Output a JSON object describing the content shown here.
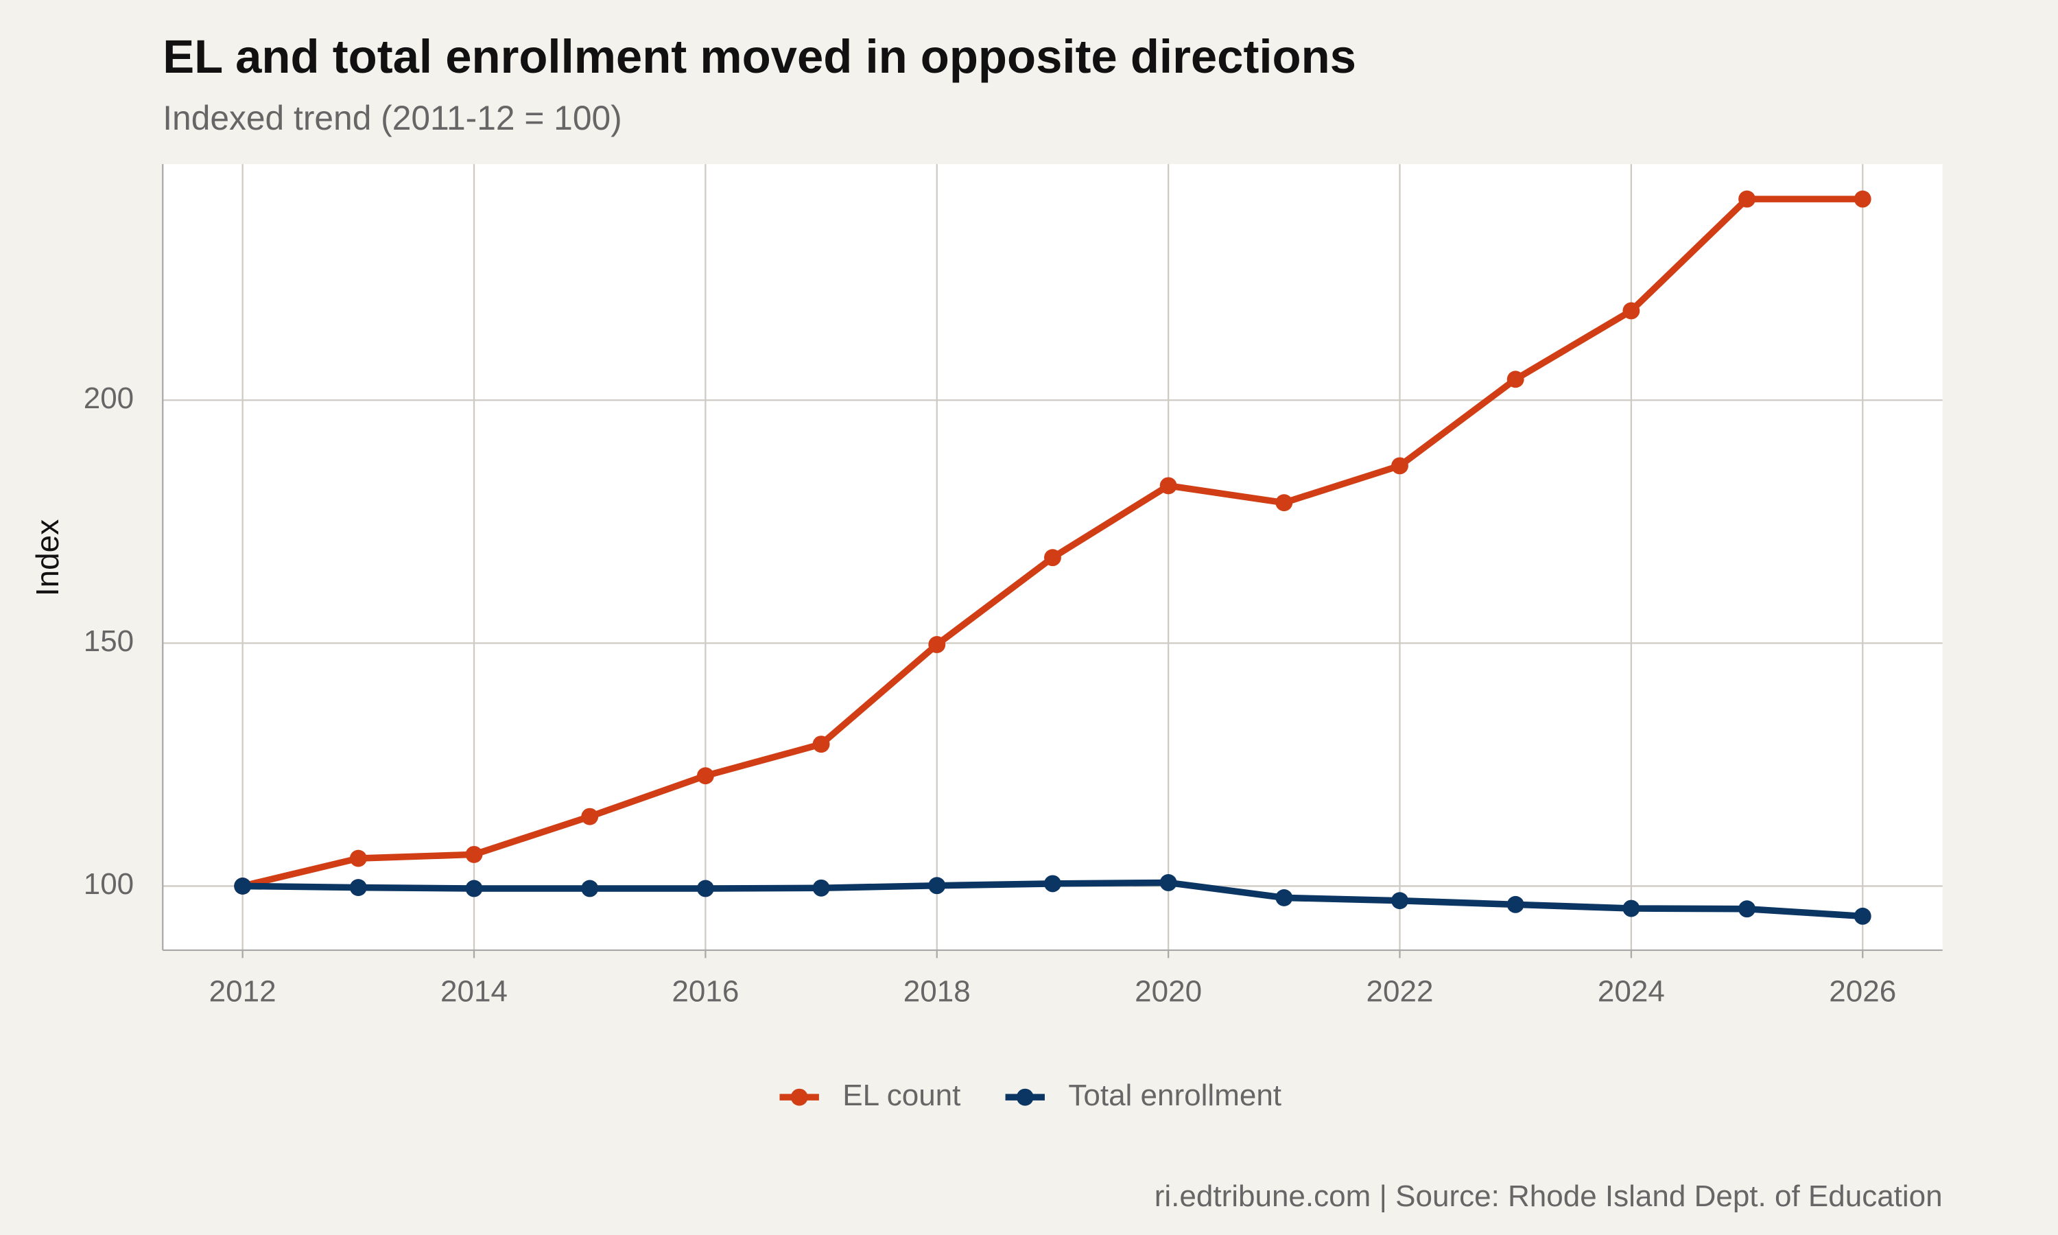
{
  "chart_data": {
    "type": "line",
    "title": "EL and total enrollment moved in opposite directions",
    "subtitle": "Indexed trend (2011-12 = 100)",
    "y_label": "Index",
    "caption": "ri.edtribune.com | Source: Rhode Island Dept. of Education",
    "x": [
      2012,
      2013,
      2014,
      2015,
      2016,
      2017,
      2018,
      2019,
      2020,
      2021,
      2022,
      2023,
      2024,
      2025,
      2026
    ],
    "series": [
      {
        "name": "EL count",
        "color": "#d13d14",
        "values": [
          100,
          105.7,
          106.5,
          114.3,
          122.7,
          129.2,
          149.7,
          167.6,
          182.4,
          178.9,
          186.5,
          204.3,
          218.4,
          241.4,
          241.4
        ]
      },
      {
        "name": "Total enrollment",
        "color": "#0b3563",
        "values": [
          100,
          99.7,
          99.5,
          99.5,
          99.5,
          99.6,
          100.1,
          100.5,
          100.7,
          97.6,
          97.0,
          96.2,
          95.4,
          95.3,
          93.8
        ]
      }
    ],
    "xlim": [
      2011.31,
      2026.69
    ],
    "xticks": [
      2012,
      2014,
      2016,
      2018,
      2020,
      2022,
      2024,
      2026
    ],
    "ylim": [
      86.8,
      248.6
    ],
    "yticks": [
      100,
      150,
      200
    ],
    "grid": true,
    "legend": "bottom"
  }
}
